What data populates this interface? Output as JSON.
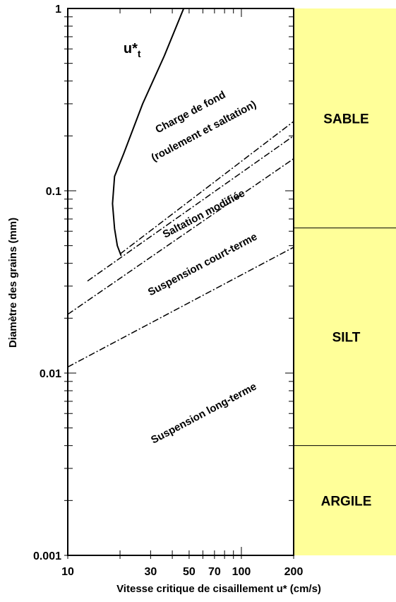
{
  "chart_data": {
    "type": "line",
    "x_scale": "log",
    "y_scale": "log",
    "xlim": [
      10,
      200
    ],
    "ylim": [
      0.001,
      1
    ],
    "grid": false,
    "xlabel": "Vitesse critique de cisaillement u* (cm/s)",
    "ylabel": "Diamètre des grains (mm)",
    "x_ticks": [
      {
        "value": 10,
        "label": "10"
      },
      {
        "value": 30,
        "label": "30"
      },
      {
        "value": 50,
        "label": "50"
      },
      {
        "value": 70,
        "label": "70"
      },
      {
        "value": 100,
        "label": "100"
      },
      {
        "value": 200,
        "label": "200"
      }
    ],
    "y_ticks": [
      {
        "value": 1,
        "label": "1"
      },
      {
        "value": 0.1,
        "label": "0.1"
      },
      {
        "value": 0.01,
        "label": "0.01"
      },
      {
        "value": 0.001,
        "label": "0.001"
      }
    ],
    "series": [
      {
        "name": "u*t",
        "style": "solid",
        "points": [
          [
            46.5,
            1.0
          ],
          [
            36,
            0.55
          ],
          [
            27,
            0.3
          ],
          [
            21,
            0.16
          ],
          [
            18.6,
            0.12
          ],
          [
            18.1,
            0.085
          ],
          [
            18.6,
            0.062
          ],
          [
            19.3,
            0.05
          ],
          [
            20.3,
            0.044
          ]
        ]
      },
      {
        "style": "dash-dot",
        "points": [
          [
            20.0,
            0.045
          ],
          [
            200,
            0.24
          ]
        ]
      },
      {
        "style": "dash-dot",
        "points": [
          [
            13.0,
            0.032
          ],
          [
            200,
            0.2
          ]
        ]
      },
      {
        "style": "dash-dot",
        "points": [
          [
            10,
            0.021
          ],
          [
            200,
            0.15
          ]
        ]
      },
      {
        "style": "dash-dot",
        "points": [
          [
            10,
            0.0108
          ],
          [
            200,
            0.049
          ]
        ]
      }
    ],
    "region_labels": [
      {
        "text": "Charge de fond",
        "x": 52,
        "y": 0.26,
        "angle": -28
      },
      {
        "text": "(roulement et saltation)",
        "x": 62,
        "y": 0.205,
        "angle": -28
      },
      {
        "text": "Saltation modifiée",
        "x": 62,
        "y": 0.072,
        "angle": -28
      },
      {
        "text": "Suspension court-terme",
        "x": 61,
        "y": 0.038,
        "angle": -28
      },
      {
        "text": "Suspension long-terme",
        "x": 62,
        "y": 0.0058,
        "angle": -28
      },
      {
        "text": "u*",
        "sub": "t",
        "x": 23.5,
        "y": 0.57,
        "angle": 0
      }
    ],
    "grain_classes": {
      "fill": "#ffff99",
      "bands": [
        {
          "label": "SABLE",
          "y_from": 1,
          "y_to": 0.0625
        },
        {
          "label": "SILT",
          "y_from": 0.0625,
          "y_to": 0.004
        },
        {
          "label": "ARGILE",
          "y_from": 0.004,
          "y_to": 0.001
        }
      ]
    }
  }
}
